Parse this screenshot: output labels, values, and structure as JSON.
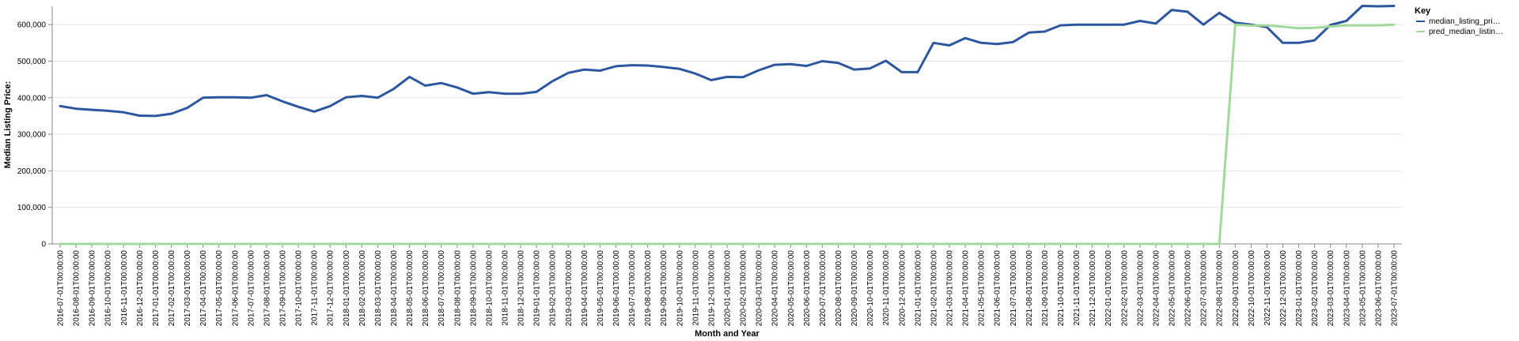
{
  "chart_data": {
    "type": "line",
    "x_label": "Month and Year",
    "y_label": "Median Listing Price:",
    "y_ticks": [
      "0",
      "100,000",
      "200,000",
      "300,000",
      "400,000",
      "500,000",
      "600,000"
    ],
    "ylim": [
      0,
      650000
    ],
    "grid": true,
    "legend_title": "Key",
    "legend_position": "top-right",
    "categories": [
      "2016-07-01T00:00:00",
      "2016-08-01T00:00:00",
      "2016-09-01T00:00:00",
      "2016-10-01T00:00:00",
      "2016-11-01T00:00:00",
      "2016-12-01T00:00:00",
      "2017-01-01T00:00:00",
      "2017-02-01T00:00:00",
      "2017-03-01T00:00:00",
      "2017-04-01T00:00:00",
      "2017-05-01T00:00:00",
      "2017-06-01T00:00:00",
      "2017-07-01T00:00:00",
      "2017-08-01T00:00:00",
      "2017-09-01T00:00:00",
      "2017-10-01T00:00:00",
      "2017-11-01T00:00:00",
      "2017-12-01T00:00:00",
      "2018-01-01T00:00:00",
      "2018-02-01T00:00:00",
      "2018-03-01T00:00:00",
      "2018-04-01T00:00:00",
      "2018-05-01T00:00:00",
      "2018-06-01T00:00:00",
      "2018-07-01T00:00:00",
      "2018-08-01T00:00:00",
      "2018-09-01T00:00:00",
      "2018-10-01T00:00:00",
      "2018-11-01T00:00:00",
      "2018-12-01T00:00:00",
      "2019-01-01T00:00:00",
      "2019-02-01T00:00:00",
      "2019-03-01T00:00:00",
      "2019-04-01T00:00:00",
      "2019-05-01T00:00:00",
      "2019-06-01T00:00:00",
      "2019-07-01T00:00:00",
      "2019-08-01T00:00:00",
      "2019-09-01T00:00:00",
      "2019-10-01T00:00:00",
      "2019-11-01T00:00:00",
      "2019-12-01T00:00:00",
      "2020-01-01T00:00:00",
      "2020-02-01T00:00:00",
      "2020-03-01T00:00:00",
      "2020-04-01T00:00:00",
      "2020-05-01T00:00:00",
      "2020-06-01T00:00:00",
      "2020-07-01T00:00:00",
      "2020-08-01T00:00:00",
      "2020-09-01T00:00:00",
      "2020-10-01T00:00:00",
      "2020-11-01T00:00:00",
      "2020-12-01T00:00:00",
      "2021-01-01T00:00:00",
      "2021-02-01T00:00:00",
      "2021-03-01T00:00:00",
      "2021-04-01T00:00:00",
      "2021-05-01T00:00:00",
      "2021-06-01T00:00:00",
      "2021-07-01T00:00:00",
      "2021-08-01T00:00:00",
      "2021-09-01T00:00:00",
      "2021-10-01T00:00:00",
      "2021-11-01T00:00:00",
      "2021-12-01T00:00:00",
      "2022-01-01T00:00:00",
      "2022-02-01T00:00:00",
      "2022-03-01T00:00:00",
      "2022-04-01T00:00:00",
      "2022-05-01T00:00:00",
      "2022-06-01T00:00:00",
      "2022-07-01T00:00:00",
      "2022-08-01T00:00:00",
      "2022-09-01T00:00:00",
      "2022-10-01T00:00:00",
      "2022-11-01T00:00:00",
      "2022-12-01T00:00:00",
      "2023-01-01T00:00:00",
      "2023-02-01T00:00:00",
      "2023-03-01T00:00:00",
      "2023-04-01T00:00:00",
      "2023-05-01T00:00:00",
      "2023-06-01T00:00:00",
      "2023-07-01T00:00:00"
    ],
    "series": [
      {
        "name": "median_listing_pri…",
        "color": "#2c57a0",
        "values": [
          377000,
          370000,
          367000,
          364000,
          360000,
          351000,
          350000,
          356000,
          372000,
          400000,
          401000,
          401000,
          400000,
          407000,
          390000,
          375000,
          362000,
          377000,
          401000,
          405000,
          400000,
          424000,
          457000,
          433000,
          440000,
          428000,
          411000,
          415000,
          411000,
          411000,
          416000,
          445000,
          468000,
          477000,
          474000,
          486000,
          489000,
          488000,
          484000,
          479000,
          466000,
          448000,
          457000,
          456000,
          475000,
          490000,
          492000,
          487000,
          500000,
          495000,
          477000,
          480000,
          501000,
          470000,
          470000,
          550000,
          543000,
          563000,
          550000,
          547000,
          552000,
          578000,
          581000,
          598000,
          600000,
          600000,
          600000,
          600000,
          610000,
          603000,
          640000,
          635000,
          600000,
          632000,
          605000,
          600000,
          593000,
          550000,
          550000,
          557000,
          599000,
          610000,
          651000,
          650000,
          651000
        ]
      },
      {
        "name": "pred_median_listin…",
        "color": "#a1d99b",
        "values": [
          0,
          0,
          0,
          0,
          0,
          0,
          0,
          0,
          0,
          0,
          0,
          0,
          0,
          0,
          0,
          0,
          0,
          0,
          0,
          0,
          0,
          0,
          0,
          0,
          0,
          0,
          0,
          0,
          0,
          0,
          0,
          0,
          0,
          0,
          0,
          0,
          0,
          0,
          0,
          0,
          0,
          0,
          0,
          0,
          0,
          0,
          0,
          0,
          0,
          0,
          0,
          0,
          0,
          0,
          0,
          0,
          0,
          0,
          0,
          0,
          0,
          0,
          0,
          0,
          0,
          0,
          0,
          0,
          0,
          0,
          0,
          0,
          0,
          0,
          600000,
          597000,
          598000,
          594000,
          590000,
          591000,
          595000,
          598000,
          598000,
          598000,
          600000
        ]
      }
    ]
  }
}
